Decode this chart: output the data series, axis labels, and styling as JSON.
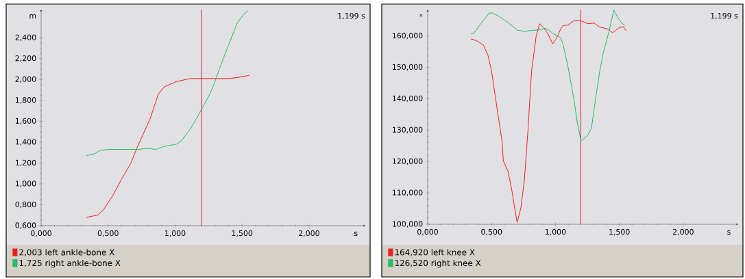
{
  "chart_data": [
    {
      "type": "line",
      "ylabel": "m",
      "xlabel": "s",
      "annotations": [
        "1,199 s"
      ],
      "legend": "bottom",
      "marker": "none",
      "line_style": "solid",
      "xlim": [
        0,
        2.42
      ],
      "ylim": [
        0.6,
        2.67
      ],
      "xticks": [
        {
          "value": 0,
          "label": "0,000"
        },
        {
          "value": 0.5,
          "label": "0,500"
        },
        {
          "value": 1,
          "label": "1,000"
        },
        {
          "value": 1.5,
          "label": "1,500"
        },
        {
          "value": 2,
          "label": "2,000"
        }
      ],
      "yticks": [
        {
          "value": 0.6,
          "label": "0,600"
        },
        {
          "value": 0.8,
          "label": "0,800"
        },
        {
          "value": 1.0,
          "label": "1,000"
        },
        {
          "value": 1.2,
          "label": "1,200"
        },
        {
          "value": 1.4,
          "label": "1,400"
        },
        {
          "value": 1.6,
          "label": "1,600"
        },
        {
          "value": 1.8,
          "label": "1,800"
        },
        {
          "value": 2.0,
          "label": "2,000"
        },
        {
          "value": 2.2,
          "label": "2,200"
        },
        {
          "value": 2.4,
          "label": "2,400"
        }
      ],
      "ref_lines": [
        {
          "axis": "x",
          "value": 1.199,
          "color": "#e02020"
        }
      ],
      "series": [
        {
          "name": "2,003  left ankle-bone X",
          "color": "#ff1a1a",
          "x": [
            0.339,
            0.42,
            0.464,
            0.536,
            0.598,
            0.67,
            0.714,
            0.759,
            0.8125,
            0.875,
            0.92,
            1.009,
            1.116,
            1.295,
            1.402,
            1.473,
            1.554
          ],
          "values": [
            0.68,
            0.7,
            0.75,
            0.89,
            1.04,
            1.2,
            1.34,
            1.47,
            1.62,
            1.86,
            1.93,
            1.98,
            2.01,
            2.01,
            2.01,
            2.02,
            2.04
          ]
        },
        {
          "name": "1,725  right ankle-bone X",
          "color": "#1fbf5f",
          "x": [
            0.339,
            0.402,
            0.4375,
            0.5,
            0.723,
            0.795,
            0.857,
            0.92,
            1.009,
            1.045,
            1.116,
            1.17,
            1.2,
            1.259,
            1.295,
            1.33,
            1.402,
            1.464,
            1.509,
            1.545
          ],
          "values": [
            1.27,
            1.29,
            1.32,
            1.33,
            1.33,
            1.34,
            1.33,
            1.36,
            1.38,
            1.41,
            1.53,
            1.65,
            1.72,
            1.86,
            1.97,
            2.1,
            2.34,
            2.54,
            2.62,
            2.66
          ]
        }
      ]
    },
    {
      "type": "line",
      "ylabel": "°",
      "xlabel": "s",
      "annotations": [
        "1,199 s"
      ],
      "legend": "bottom",
      "marker": "none",
      "line_style": "solid",
      "xlim": [
        0,
        2.43
      ],
      "ylim": [
        100,
        168.4
      ],
      "xticks": [
        {
          "value": 0,
          "label": "0,000"
        },
        {
          "value": 0.5,
          "label": "0,500"
        },
        {
          "value": 1,
          "label": "1,000"
        },
        {
          "value": 1.5,
          "label": "1,500"
        },
        {
          "value": 2,
          "label": "2,000"
        }
      ],
      "yticks": [
        {
          "value": 100,
          "label": "100,000"
        },
        {
          "value": 110,
          "label": "110,000"
        },
        {
          "value": 120,
          "label": "120,000"
        },
        {
          "value": 130,
          "label": "130,000"
        },
        {
          "value": 140,
          "label": "140,000"
        },
        {
          "value": 150,
          "label": "150,000"
        },
        {
          "value": 160,
          "label": "160,000"
        }
      ],
      "ref_lines": [
        {
          "axis": "x",
          "value": 1.199,
          "color": "#e02020"
        }
      ],
      "series": [
        {
          "name": "164,920  left knee X",
          "color": "#ff1a1a",
          "x": [
            0.339,
            0.362,
            0.39,
            0.436,
            0.473,
            0.5,
            0.527,
            0.555,
            0.583,
            0.592,
            0.629,
            0.657,
            0.684,
            0.7,
            0.729,
            0.757,
            0.785,
            0.813,
            0.85,
            0.877,
            0.905,
            0.942,
            0.978,
            1.006,
            1.043,
            1.061,
            1.098,
            1.144,
            1.2,
            1.255,
            1.3,
            1.347,
            1.411,
            1.448,
            1.494,
            1.531,
            1.553
          ],
          "values": [
            159.0,
            158.8,
            158.3,
            157.1,
            153.7,
            148.8,
            141.3,
            133.7,
            126.2,
            120.2,
            116.8,
            111.2,
            104.4,
            100.6,
            105.1,
            114.2,
            130.0,
            148.8,
            160.2,
            163.9,
            162.8,
            160.6,
            157.5,
            159.0,
            162.4,
            163.3,
            163.5,
            164.8,
            164.8,
            163.9,
            164.1,
            162.8,
            162.2,
            161.0,
            162.5,
            163.0,
            161.6
          ]
        },
        {
          "name": "126,520  right knee X",
          "color": "#1fbf5f",
          "x": [
            0.339,
            0.362,
            0.408,
            0.482,
            0.509,
            0.555,
            0.629,
            0.703,
            0.757,
            0.831,
            0.886,
            0.923,
            0.978,
            1.043,
            1.061,
            1.098,
            1.144,
            1.172,
            1.2,
            1.255,
            1.282,
            1.319,
            1.347,
            1.374,
            1.42,
            1.457,
            1.485,
            1.513,
            1.546
          ],
          "values": [
            160.6,
            160.9,
            163.5,
            167.3,
            167.3,
            166.3,
            164.3,
            161.8,
            161.5,
            161.8,
            162.0,
            162.5,
            160.9,
            159.4,
            157.1,
            150.3,
            139.8,
            132.3,
            126.5,
            128.5,
            130.7,
            141.3,
            148.8,
            154.5,
            161.6,
            168.2,
            166.1,
            164.3,
            163.3
          ]
        }
      ]
    }
  ]
}
